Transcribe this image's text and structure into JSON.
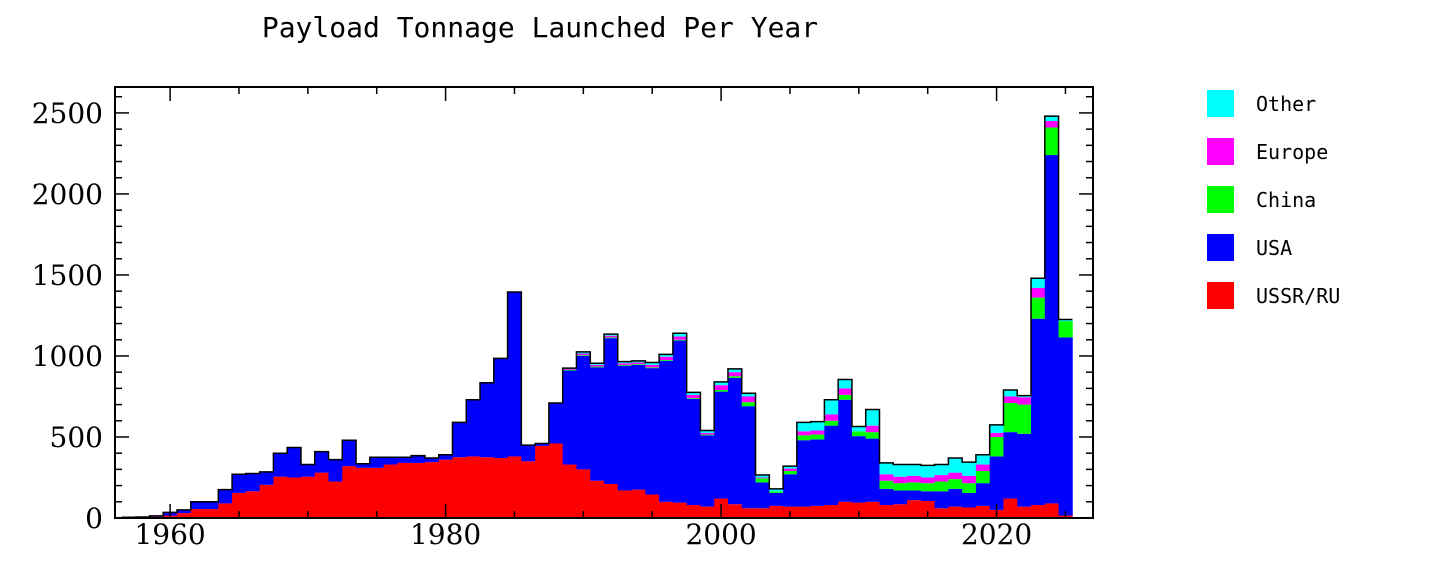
{
  "chart_data": {
    "type": "bar",
    "stacked": true,
    "title": "Payload Tonnage Launched Per Year",
    "xlabel": "",
    "ylabel": "",
    "xlim": [
      1956,
      2027
    ],
    "ylim": [
      0,
      2660
    ],
    "x_ticks": [
      1960,
      1980,
      2000,
      2020
    ],
    "y_ticks": [
      0,
      500,
      1000,
      1500,
      2000,
      2500
    ],
    "legend_position": "right",
    "grid": false,
    "years": [
      1957,
      1958,
      1959,
      1960,
      1961,
      1962,
      1963,
      1964,
      1965,
      1966,
      1967,
      1968,
      1969,
      1970,
      1971,
      1972,
      1973,
      1974,
      1975,
      1976,
      1977,
      1978,
      1979,
      1980,
      1981,
      1982,
      1983,
      1984,
      1985,
      1986,
      1987,
      1988,
      1989,
      1990,
      1991,
      1992,
      1993,
      1994,
      1995,
      1996,
      1997,
      1998,
      1999,
      2000,
      2001,
      2002,
      2003,
      2004,
      2005,
      2006,
      2007,
      2008,
      2009,
      2010,
      2011,
      2012,
      2013,
      2014,
      2015,
      2016,
      2017,
      2018,
      2019,
      2020,
      2021,
      2022,
      2023,
      2024,
      2025
    ],
    "series": [
      {
        "name": "USSR/RU",
        "color": "#ff0000",
        "values": [
          5,
          3,
          8,
          15,
          30,
          55,
          55,
          90,
          155,
          165,
          205,
          255,
          250,
          255,
          280,
          225,
          320,
          310,
          310,
          330,
          340,
          340,
          345,
          360,
          375,
          380,
          375,
          370,
          380,
          350,
          445,
          460,
          330,
          300,
          230,
          210,
          170,
          175,
          145,
          100,
          95,
          80,
          70,
          120,
          85,
          60,
          60,
          75,
          70,
          70,
          75,
          80,
          100,
          95,
          100,
          80,
          85,
          110,
          105,
          60,
          70,
          65,
          75,
          50,
          120,
          70,
          80,
          90,
          15
        ]
      },
      {
        "name": "USA",
        "color": "#0000ff",
        "values": [
          0,
          3,
          5,
          20,
          20,
          45,
          45,
          85,
          115,
          110,
          80,
          145,
          185,
          75,
          130,
          135,
          160,
          25,
          65,
          45,
          35,
          45,
          25,
          30,
          215,
          350,
          460,
          615,
          1015,
          100,
          15,
          250,
          580,
          700,
          700,
          900,
          770,
          770,
          780,
          870,
          1000,
          655,
          440,
          660,
          780,
          630,
          160,
          80,
          200,
          410,
          410,
          490,
          630,
          410,
          390,
          100,
          85,
          60,
          60,
          105,
          110,
          90,
          140,
          330,
          410,
          450,
          1150,
          2150,
          1100
        ]
      },
      {
        "name": "China",
        "color": "#00ff00",
        "values": [
          0,
          0,
          0,
          0,
          0,
          0,
          0,
          0,
          0,
          0,
          0,
          0,
          0,
          0,
          0,
          0,
          0,
          0,
          0,
          0,
          0,
          0,
          0,
          0,
          0,
          0,
          0,
          0,
          0,
          0,
          0,
          0,
          5,
          5,
          5,
          5,
          5,
          5,
          5,
          5,
          5,
          5,
          5,
          10,
          10,
          25,
          25,
          10,
          20,
          30,
          30,
          30,
          30,
          30,
          40,
          50,
          45,
          50,
          50,
          60,
          60,
          60,
          75,
          120,
          180,
          180,
          130,
          170,
          100
        ]
      },
      {
        "name": "Europe",
        "color": "#ff00ff",
        "values": [
          0,
          0,
          0,
          0,
          0,
          0,
          0,
          0,
          0,
          0,
          0,
          0,
          0,
          0,
          0,
          0,
          0,
          0,
          0,
          0,
          0,
          0,
          0,
          0,
          0,
          0,
          0,
          0,
          0,
          0,
          0,
          0,
          5,
          10,
          10,
          10,
          10,
          10,
          15,
          20,
          20,
          20,
          10,
          30,
          25,
          35,
          5,
          0,
          15,
          25,
          25,
          40,
          40,
          0,
          40,
          40,
          40,
          40,
          35,
          40,
          40,
          45,
          40,
          25,
          40,
          45,
          60,
          40,
          0
        ]
      },
      {
        "name": "Other",
        "color": "#00ffff",
        "values": [
          0,
          0,
          0,
          0,
          0,
          0,
          0,
          0,
          0,
          0,
          0,
          0,
          0,
          0,
          0,
          0,
          0,
          0,
          0,
          0,
          0,
          0,
          0,
          0,
          0,
          0,
          0,
          0,
          0,
          0,
          0,
          0,
          5,
          10,
          10,
          10,
          10,
          10,
          15,
          15,
          20,
          15,
          15,
          20,
          20,
          20,
          15,
          15,
          15,
          55,
          55,
          90,
          55,
          30,
          100,
          70,
          75,
          70,
          75,
          65,
          90,
          85,
          60,
          50,
          40,
          10,
          60,
          30,
          10
        ]
      }
    ]
  }
}
